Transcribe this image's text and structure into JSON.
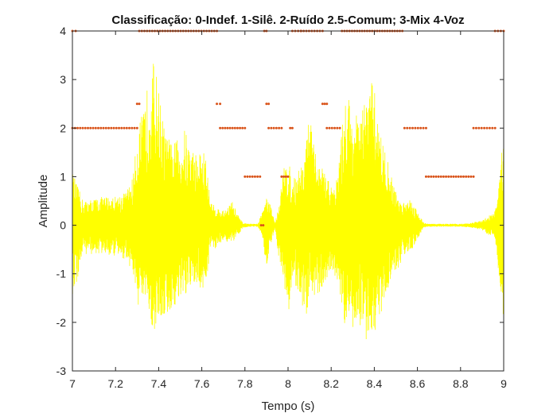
{
  "chart_data": {
    "type": "line",
    "title": "Classificação: 0-Indef. 1-Silê. 2-Ruído 2.5-Comum; 3-Mix 4-Voz",
    "xlabel": "Tempo (s)",
    "ylabel": "Amplitude",
    "xlim": [
      7,
      9
    ],
    "ylim": [
      -3,
      4
    ],
    "xticks": [
      "7",
      "7.2",
      "7.4",
      "7.6",
      "7.8",
      "8",
      "8.2",
      "8.4",
      "8.6",
      "8.8",
      "9"
    ],
    "yticks": [
      "4",
      "3",
      "2",
      "1",
      "0",
      "-1",
      "-2",
      "-3"
    ],
    "grid": false,
    "series": [
      {
        "kind": "waveform",
        "color": "#ffff00",
        "envelope": {
          "t": [
            7.0,
            7.05,
            7.1,
            7.15,
            7.2,
            7.25,
            7.28,
            7.31,
            7.33,
            7.36,
            7.38,
            7.4,
            7.43,
            7.46,
            7.5,
            7.52,
            7.55,
            7.58,
            7.6,
            7.62,
            7.64,
            7.66,
            7.7,
            7.74,
            7.77,
            7.79,
            7.82,
            7.86,
            7.88,
            7.9,
            7.92,
            7.94,
            7.96,
            7.98,
            8.0,
            8.02,
            8.05,
            8.08,
            8.1,
            8.12,
            8.14,
            8.16,
            8.2,
            8.23,
            8.26,
            8.28,
            8.3,
            8.33,
            8.36,
            8.38,
            8.4,
            8.42,
            8.44,
            8.47,
            8.5,
            8.52,
            8.54,
            8.56,
            8.6,
            8.63,
            8.65,
            8.7,
            8.75,
            8.8,
            8.85,
            8.9,
            8.93,
            8.96,
            8.98,
            9.0
          ],
          "max": [
            1.1,
            0.5,
            0.55,
            0.6,
            0.6,
            0.7,
            1.0,
            2.2,
            2.3,
            3.3,
            3.4,
            2.8,
            1.9,
            1.7,
            1.8,
            2.0,
            1.6,
            1.5,
            1.6,
            1.4,
            0.5,
            0.4,
            0.3,
            0.5,
            0.2,
            0.05,
            0.03,
            0.03,
            0.3,
            0.6,
            0.4,
            0.05,
            0.5,
            1.2,
            1.4,
            0.9,
            1.2,
            1.5,
            2.4,
            1.6,
            1.3,
            1.2,
            0.8,
            1.0,
            2.5,
            2.7,
            2.4,
            2.2,
            2.6,
            3.1,
            2.8,
            2.2,
            1.7,
            1.2,
            0.7,
            0.5,
            0.5,
            0.6,
            0.3,
            0.05,
            0.03,
            0.03,
            0.03,
            0.03,
            0.05,
            0.1,
            0.2,
            0.3,
            0.9,
            2.0
          ],
          "min": [
            -1.6,
            -0.6,
            -0.6,
            -0.6,
            -0.65,
            -0.7,
            -1.0,
            -1.8,
            -1.6,
            -2.0,
            -2.2,
            -2.0,
            -1.9,
            -1.8,
            -1.5,
            -1.6,
            -1.3,
            -1.2,
            -1.4,
            -1.2,
            -0.5,
            -0.5,
            -0.3,
            -0.4,
            -0.2,
            -0.05,
            -0.03,
            -0.03,
            -0.2,
            -0.9,
            -0.4,
            -0.05,
            -0.8,
            -1.3,
            -1.9,
            -1.1,
            -1.5,
            -2.0,
            -1.5,
            -1.5,
            -1.4,
            -1.3,
            -0.9,
            -1.3,
            -2.0,
            -2.2,
            -2.3,
            -2.0,
            -2.4,
            -2.1,
            -2.3,
            -2.0,
            -1.7,
            -1.2,
            -1.0,
            -0.8,
            -0.6,
            -0.6,
            -0.3,
            -0.05,
            -0.03,
            -0.03,
            -0.03,
            -0.03,
            -0.05,
            -0.1,
            -0.2,
            -0.3,
            -1.2,
            -2.0
          ]
        }
      },
      {
        "kind": "classification-markers",
        "color": "#d95319",
        "segments": [
          {
            "x0": 7.0,
            "x1": 7.015,
            "y": 4
          },
          {
            "x0": 7.0,
            "x1": 7.3,
            "y": 2
          },
          {
            "x0": 7.3,
            "x1": 7.31,
            "y": 2.5
          },
          {
            "x0": 7.31,
            "x1": 7.67,
            "y": 4
          },
          {
            "x0": 7.67,
            "x1": 7.685,
            "y": 2.5
          },
          {
            "x0": 7.685,
            "x1": 7.8,
            "y": 2
          },
          {
            "x0": 7.8,
            "x1": 7.87,
            "y": 1
          },
          {
            "x0": 7.875,
            "x1": 7.885,
            "y": 0
          },
          {
            "x0": 7.89,
            "x1": 7.9,
            "y": 4
          },
          {
            "x0": 7.9,
            "x1": 7.91,
            "y": 2.5
          },
          {
            "x0": 7.91,
            "x1": 7.97,
            "y": 2
          },
          {
            "x0": 7.97,
            "x1": 8.0,
            "y": 1
          },
          {
            "x0": 8.01,
            "x1": 8.02,
            "y": 2
          },
          {
            "x0": 8.02,
            "x1": 8.06,
            "y": 4
          },
          {
            "x0": 8.06,
            "x1": 8.06,
            "y": 4
          },
          {
            "x0": 8.06,
            "x1": 8.16,
            "y": 4
          },
          {
            "x0": 8.16,
            "x1": 8.18,
            "y": 2.5
          },
          {
            "x0": 8.18,
            "x1": 8.24,
            "y": 2
          },
          {
            "x0": 8.25,
            "x1": 8.53,
            "y": 4
          },
          {
            "x0": 8.54,
            "x1": 8.64,
            "y": 2
          },
          {
            "x0": 8.64,
            "x1": 8.86,
            "y": 1
          },
          {
            "x0": 8.86,
            "x1": 8.96,
            "y": 2
          },
          {
            "x0": 8.96,
            "x1": 9.0,
            "y": 4
          }
        ]
      }
    ]
  }
}
